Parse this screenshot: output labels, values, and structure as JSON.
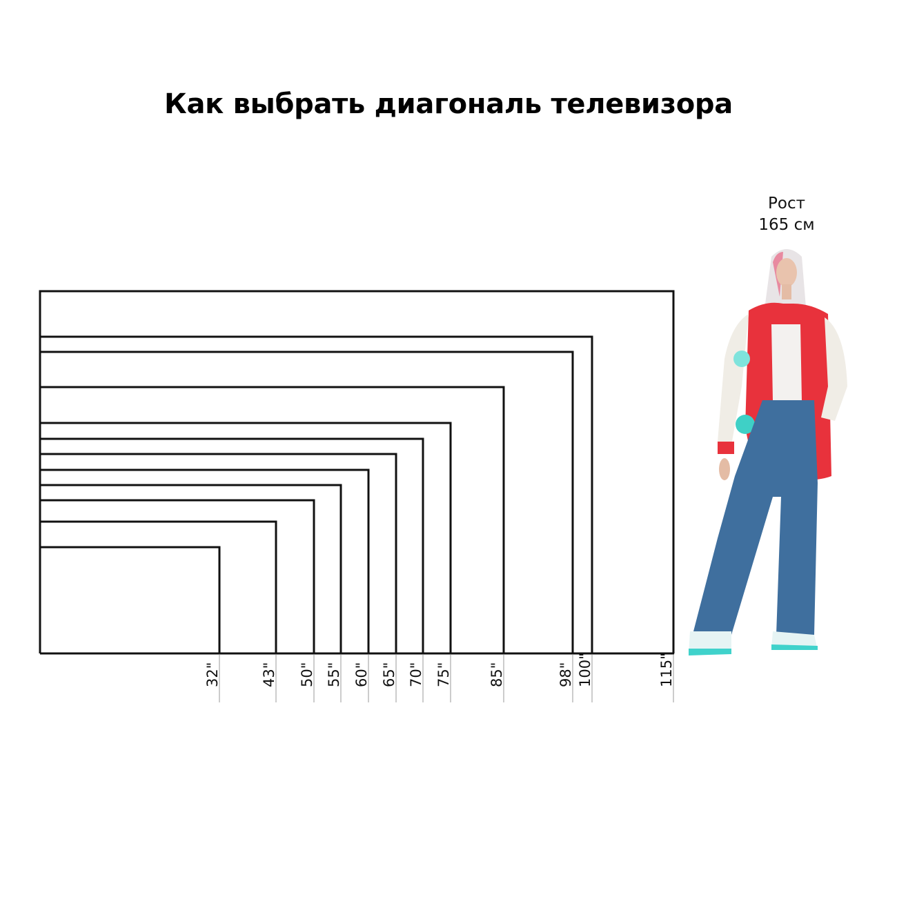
{
  "title": "Как выбрать диагональ телевизора",
  "person": {
    "height_label_line1": "Рост",
    "height_label_line2": "165 см"
  },
  "diagonals": [
    "32\"",
    "43\"",
    "50\"",
    "55\"",
    "60\"",
    "65\"",
    "70\"",
    "75\"",
    "85\"",
    "98\"",
    "100\"",
    "115\""
  ],
  "colors": {
    "frame": "#111111",
    "guide": "#bbbbbb",
    "jacket": "#e8323c",
    "jeans": "#3f6f9e"
  }
}
